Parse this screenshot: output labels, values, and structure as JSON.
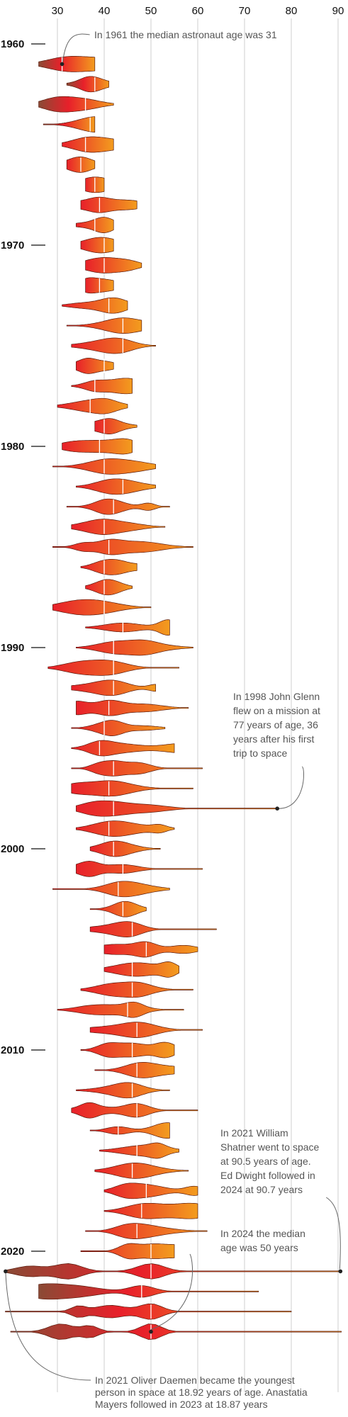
{
  "chart_data": {
    "type": "violin",
    "x_axis": {
      "ticks": [
        30,
        40,
        50,
        60,
        70,
        80,
        90
      ],
      "range": [
        18,
        92
      ],
      "grid": true
    },
    "y_axis": {
      "labels": [
        "1960",
        "1970",
        "1980",
        "1990",
        "2000",
        "2010",
        "2020"
      ],
      "range": [
        1960,
        2024
      ]
    },
    "color_scale": {
      "low": "#e8202a",
      "high": "#f39c1e"
    },
    "grid_color": "#cfcfcf",
    "rows": [
      {
        "year": 1961,
        "min": 26,
        "max": 38,
        "median": 31
      },
      {
        "year": 1962,
        "min": 32,
        "max": 41,
        "median": 38
      },
      {
        "year": 1963,
        "min": 26,
        "max": 42,
        "median": 36
      },
      {
        "year": 1964,
        "min": 27,
        "max": 38,
        "median": 37
      },
      {
        "year": 1965,
        "min": 31,
        "max": 42,
        "median": 36
      },
      {
        "year": 1966,
        "min": 32,
        "max": 38,
        "median": 35
      },
      {
        "year": 1967,
        "min": 36,
        "max": 40,
        "median": 38
      },
      {
        "year": 1968,
        "min": 35,
        "max": 47,
        "median": 39
      },
      {
        "year": 1969,
        "min": 34,
        "max": 42,
        "median": 38
      },
      {
        "year": 1970,
        "min": 35,
        "max": 42,
        "median": 40
      },
      {
        "year": 1971,
        "min": 36,
        "max": 48,
        "median": 40
      },
      {
        "year": 1972,
        "min": 36,
        "max": 42,
        "median": 39
      },
      {
        "year": 1973,
        "min": 31,
        "max": 45,
        "median": 41
      },
      {
        "year": 1974,
        "min": 32,
        "max": 48,
        "median": 44
      },
      {
        "year": 1975,
        "min": 33,
        "max": 51,
        "median": 44
      },
      {
        "year": 1976,
        "min": 34,
        "max": 42,
        "median": 40
      },
      {
        "year": 1977,
        "min": 33,
        "max": 46,
        "median": 38
      },
      {
        "year": 1978,
        "min": 30,
        "max": 45,
        "median": 37
      },
      {
        "year": 1979,
        "min": 38,
        "max": 47,
        "median": 40
      },
      {
        "year": 1980,
        "min": 31,
        "max": 46,
        "median": 39
      },
      {
        "year": 1981,
        "min": 29,
        "max": 51,
        "median": 40
      },
      {
        "year": 1982,
        "min": 34,
        "max": 51,
        "median": 44
      },
      {
        "year": 1983,
        "min": 32,
        "max": 54,
        "median": 42
      },
      {
        "year": 1984,
        "min": 33,
        "max": 53,
        "median": 40
      },
      {
        "year": 1985,
        "min": 29,
        "max": 59,
        "median": 41
      },
      {
        "year": 1986,
        "min": 35,
        "max": 47,
        "median": 40
      },
      {
        "year": 1987,
        "min": 36,
        "max": 46,
        "median": 40
      },
      {
        "year": 1988,
        "min": 29,
        "max": 50,
        "median": 40
      },
      {
        "year": 1989,
        "min": 36,
        "max": 54,
        "median": 44
      },
      {
        "year": 1990,
        "min": 34,
        "max": 59,
        "median": 42
      },
      {
        "year": 1991,
        "min": 28,
        "max": 56,
        "median": 42
      },
      {
        "year": 1992,
        "min": 33,
        "max": 51,
        "median": 42
      },
      {
        "year": 1993,
        "min": 34,
        "max": 58,
        "median": 41
      },
      {
        "year": 1994,
        "min": 33,
        "max": 53,
        "median": 40
      },
      {
        "year": 1995,
        "min": 33,
        "max": 55,
        "median": 39
      },
      {
        "year": 1996,
        "min": 33,
        "max": 61,
        "median": 42
      },
      {
        "year": 1997,
        "min": 33,
        "max": 59,
        "median": 41
      },
      {
        "year": 1998,
        "min": 34,
        "max": 77,
        "median": 42
      },
      {
        "year": 1999,
        "min": 34,
        "max": 55,
        "median": 41
      },
      {
        "year": 2000,
        "min": 37,
        "max": 52,
        "median": 42
      },
      {
        "year": 2001,
        "min": 34,
        "max": 61,
        "median": 44
      },
      {
        "year": 2002,
        "min": 29,
        "max": 54,
        "median": 43
      },
      {
        "year": 2003,
        "min": 37,
        "max": 49,
        "median": 44
      },
      {
        "year": 2004,
        "min": 37,
        "max": 64,
        "median": 46
      },
      {
        "year": 2005,
        "min": 40,
        "max": 60,
        "median": 49
      },
      {
        "year": 2006,
        "min": 40,
        "max": 56,
        "median": 46
      },
      {
        "year": 2007,
        "min": 35,
        "max": 59,
        "median": 46
      },
      {
        "year": 2008,
        "min": 30,
        "max": 57,
        "median": 45
      },
      {
        "year": 2009,
        "min": 37,
        "max": 61,
        "median": 47
      },
      {
        "year": 2010,
        "min": 35,
        "max": 55,
        "median": 46
      },
      {
        "year": 2011,
        "min": 38,
        "max": 55,
        "median": 47
      },
      {
        "year": 2012,
        "min": 34,
        "max": 54,
        "median": 46
      },
      {
        "year": 2013,
        "min": 33,
        "max": 60,
        "median": 47
      },
      {
        "year": 2014,
        "min": 37,
        "max": 54,
        "median": 43
      },
      {
        "year": 2015,
        "min": 39,
        "max": 56,
        "median": 47
      },
      {
        "year": 2016,
        "min": 38,
        "max": 58,
        "median": 46
      },
      {
        "year": 2017,
        "min": 40,
        "max": 60,
        "median": 49
      },
      {
        "year": 2018,
        "min": 40,
        "max": 60,
        "median": 48
      },
      {
        "year": 2019,
        "min": 36,
        "max": 62,
        "median": 47
      },
      {
        "year": 2020,
        "min": 35,
        "max": 55,
        "median": 50
      },
      {
        "year": 2021,
        "min": 18.92,
        "max": 90.5,
        "median": 50
      },
      {
        "year": 2022,
        "min": 26,
        "max": 73,
        "median": 48
      },
      {
        "year": 2023,
        "min": 18.87,
        "max": 80,
        "median": 50
      },
      {
        "year": 2024,
        "min": 20,
        "max": 90.7,
        "median": 50
      }
    ],
    "annotations": [
      {
        "id": "median-1961",
        "lines": [
          "In 1961 the median astronaut age was 31"
        ],
        "point": {
          "year": 1961,
          "age": 31
        }
      },
      {
        "id": "glenn-1998",
        "lines": [
          "In 1998 John Glenn",
          "flew on a mission at",
          "77 years of age, 36",
          "years after his first",
          "trip to space"
        ],
        "point": {
          "year": 1998,
          "age": 77
        }
      },
      {
        "id": "shatner-2021",
        "lines": [
          "In 2021 William",
          "Shatner went to space",
          "at 90.5 years of age.",
          "Ed Dwight followed in",
          "2024 at 90.7 years"
        ],
        "point": {
          "year": 2021,
          "age": 90.5
        }
      },
      {
        "id": "median-2024",
        "lines": [
          "In 2024 the median",
          "age was 50 years"
        ],
        "point": {
          "year": 2024,
          "age": 50
        }
      },
      {
        "id": "daemen-2021",
        "lines": [
          "In 2021 Oliver Daemen became the youngest",
          "person in space at 18.92 years of age. Anastatia",
          "Mayers followed in 2023 at 18.87 years"
        ],
        "point": {
          "year": 2021,
          "age": 18.92
        }
      }
    ]
  }
}
